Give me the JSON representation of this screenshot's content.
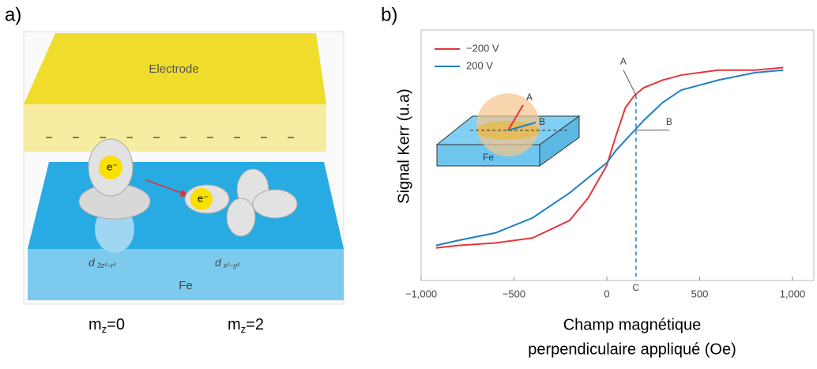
{
  "panel_a": {
    "label": "a)",
    "electrode": "Electrode",
    "substrate": "Fe",
    "electron": "e⁻",
    "orbitals": [
      {
        "main": "d",
        "sub": "3z²−r²"
      },
      {
        "main": "d",
        "sub": "x²−y²"
      }
    ],
    "states": [
      {
        "main": "m",
        "sub": "z",
        "tail": "=0"
      },
      {
        "main": "m",
        "sub": "z",
        "tail": "=2"
      }
    ]
  },
  "chart_data": {
    "type": "line",
    "panel_label": "b)",
    "x_label": [
      "Champ magnétique",
      "perpendiculaire appliqué (Oe)"
    ],
    "y_label": "Signal Kerr (u.a)",
    "x": [
      -920,
      -800,
      -600,
      -400,
      -200,
      -100,
      0,
      50,
      100,
      150,
      200,
      300,
      400,
      600,
      800,
      950
    ],
    "series": [
      {
        "name": "−200 V",
        "color": "#e8343c",
        "values": [
          0.13,
          0.14,
          0.15,
          0.17,
          0.24,
          0.33,
          0.46,
          0.58,
          0.69,
          0.74,
          0.77,
          0.8,
          0.82,
          0.84,
          0.84,
          0.85
        ]
      },
      {
        "name": "200 V",
        "color": "#1f7fc4",
        "values": [
          0.14,
          0.16,
          0.19,
          0.25,
          0.35,
          0.41,
          0.47,
          0.52,
          0.56,
          0.6,
          0.64,
          0.71,
          0.76,
          0.8,
          0.83,
          0.84
        ]
      }
    ],
    "xlim": [
      -1000,
      1000
    ],
    "ylim": [
      0,
      1
    ],
    "xticks": [
      {
        "value": -1000,
        "label": "−1,000"
      },
      {
        "value": -500,
        "label": "−500"
      },
      0,
      500,
      {
        "value": 1000,
        "label": "1,000"
      }
    ],
    "vline": {
      "x": 157,
      "label": "C"
    },
    "annotations": [
      {
        "text": "A",
        "x": 157,
        "y": 0.74
      },
      {
        "text": "B",
        "x": 157,
        "y": 0.6
      }
    ],
    "inset": {
      "a": "A",
      "b": "B",
      "substrate": "Fe"
    }
  }
}
